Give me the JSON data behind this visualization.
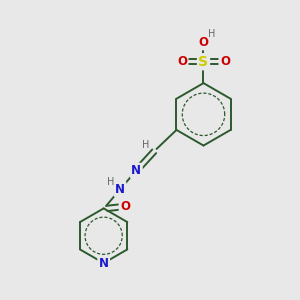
{
  "background_color": "#e8e8e8",
  "bond_color": "#2d5a2d",
  "atom_colors": {
    "N": "#1a1acc",
    "O": "#cc0000",
    "S": "#cccc00",
    "H": "#666666",
    "C": "#2d5a2d"
  },
  "font_size_atom": 8.5,
  "font_size_h": 7.0,
  "figsize": [
    3.0,
    3.0
  ],
  "dpi": 100,
  "lw": 1.4
}
